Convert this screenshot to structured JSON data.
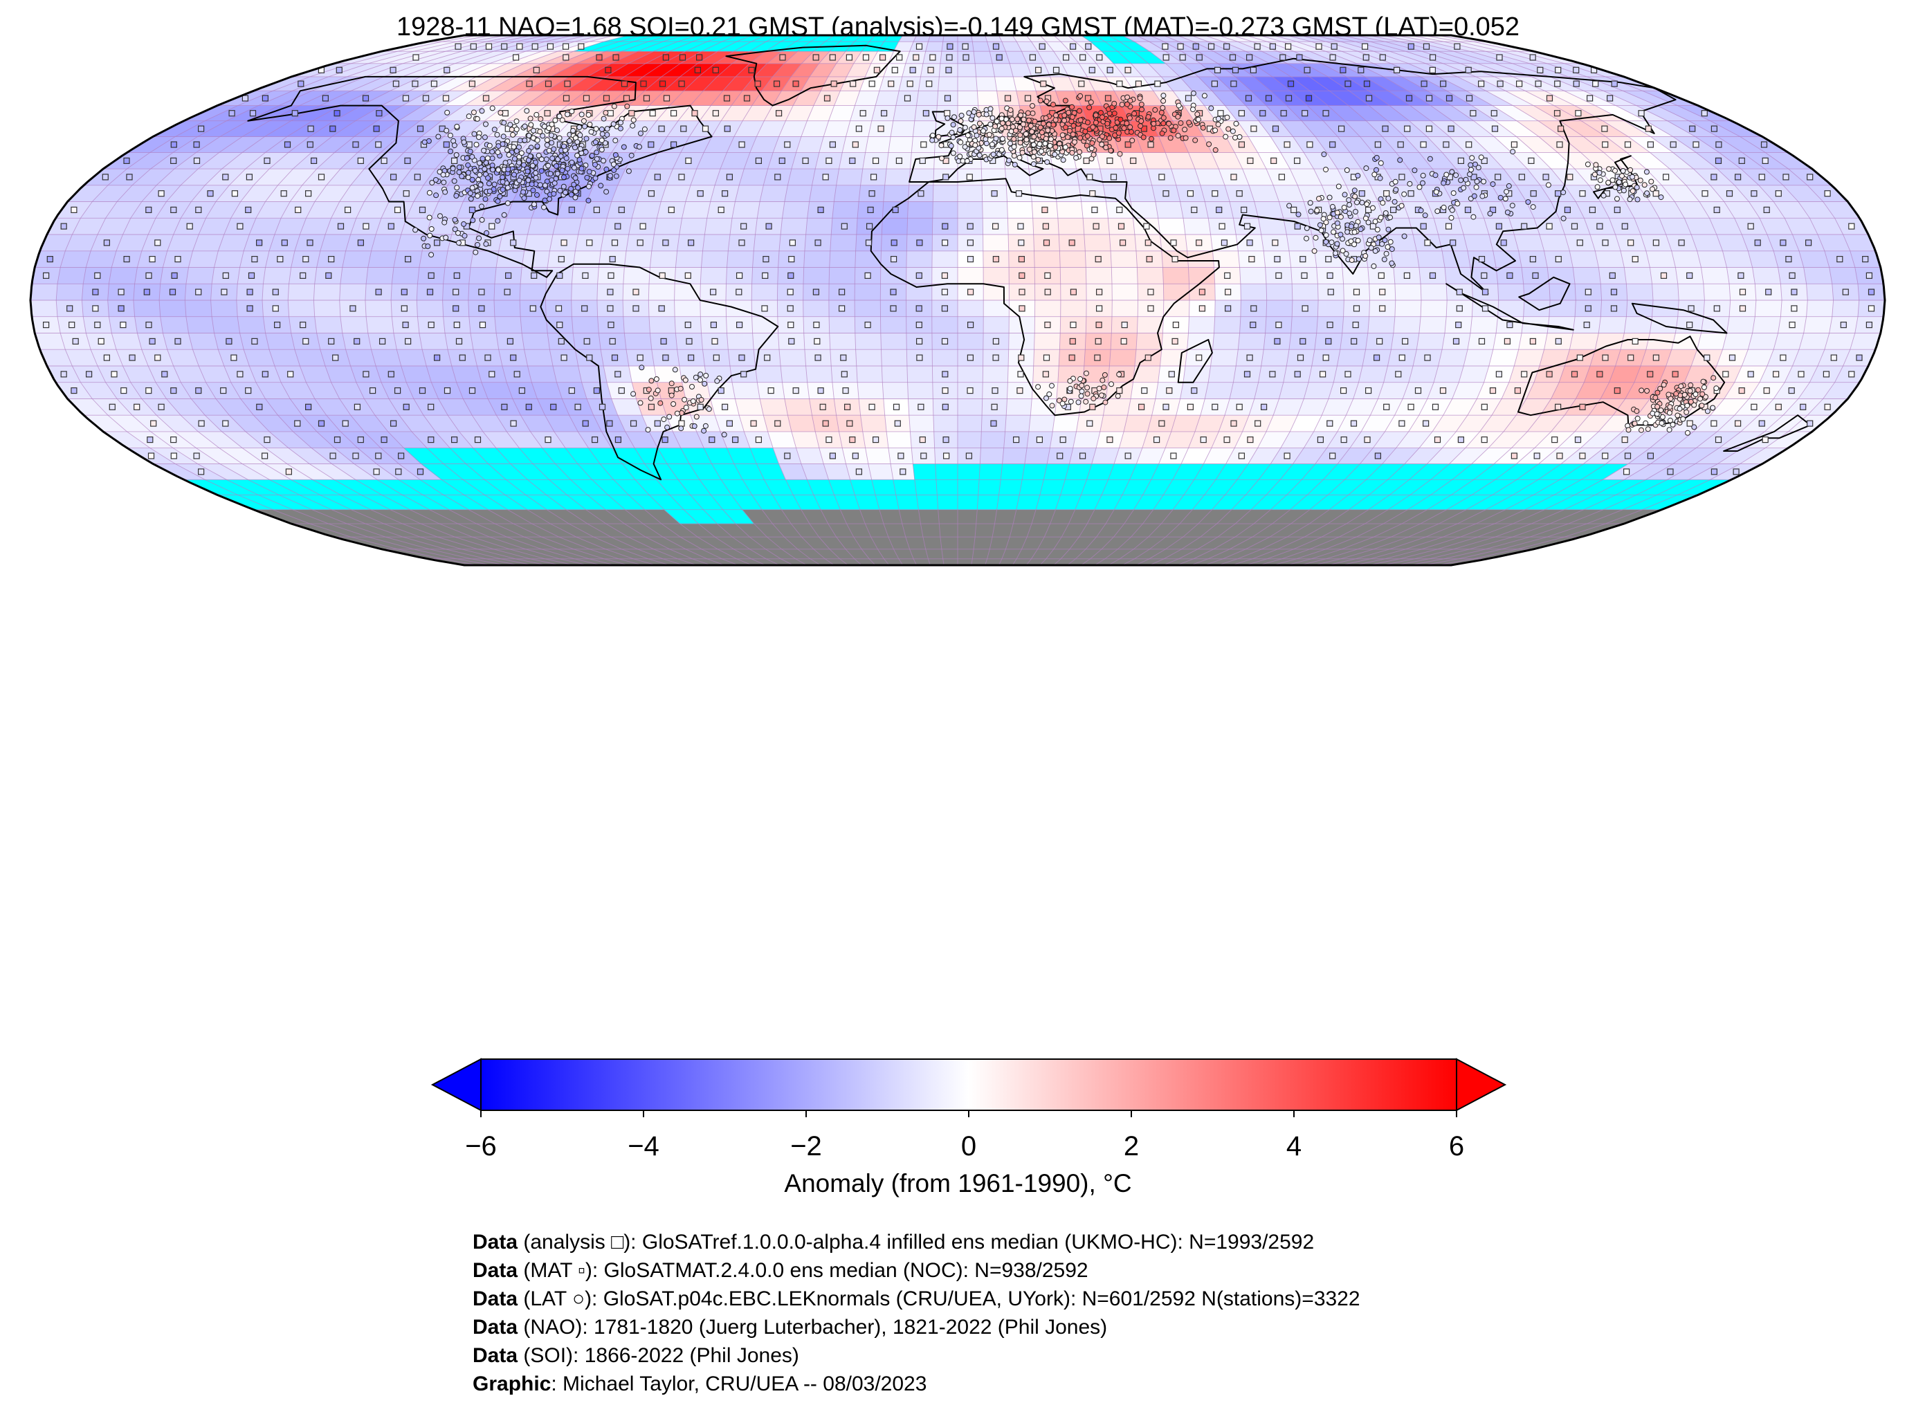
{
  "title": "1928-11 NAO=1.68 SOI=0.21 GMST (analysis)=-0.149 GMST (MAT)=-0.273 GMST (LAT)=0.052",
  "colorbar": {
    "label": "Anomaly (from 1961-1990), °C",
    "ticks": [
      "−6",
      "−4",
      "−2",
      "0",
      "2",
      "4",
      "6"
    ],
    "tick_values": [
      -6,
      -4,
      -2,
      0,
      2,
      4,
      6
    ],
    "min": -6,
    "max": 6,
    "colormap": "bwr",
    "extend": "both"
  },
  "map": {
    "projection": "Robinson",
    "grid": "5x5 degree",
    "land_outline_color": "#000000",
    "missing_color": "#00ffff",
    "antarctica_color": "#808080",
    "markers": {
      "analysis": "square",
      "mat": "small square",
      "lat": "circle"
    },
    "anomaly_regions": [
      {
        "region": "Arctic Canada / Greenland",
        "anomaly": 5.5
      },
      {
        "region": "Eastern Europe / Western Russia",
        "anomaly": 4.0
      },
      {
        "region": "Central Siberia",
        "anomaly": -3.0
      },
      {
        "region": "North Pacific",
        "anomaly": -2.5
      },
      {
        "region": "Eastern North America",
        "anomaly": -1.5
      },
      {
        "region": "Southern Africa",
        "anomaly": 2.5
      },
      {
        "region": "Australia",
        "anomaly": 2.5
      },
      {
        "region": "Southern Ocean",
        "anomaly": "missing"
      }
    ]
  },
  "credits": [
    {
      "key": "Data",
      "text": " (analysis □): GloSATref.1.0.0.0-alpha.4 infilled ens median (UKMO-HC): N=1993/2592"
    },
    {
      "key": "Data",
      "text": " (MAT ▫): GloSATMAT.2.4.0.0 ens median (NOC): N=938/2592"
    },
    {
      "key": "Data",
      "text": " (LAT ○): GloSAT.p04c.EBC.LEKnormals (CRU/UEA, UYork): N=601/2592 N(stations)=3322"
    },
    {
      "key": "Data",
      "text": " (NAO): 1781-1820 (Juerg Luterbacher), 1821-2022 (Phil Jones)"
    },
    {
      "key": "Data",
      "text": " (SOI): 1866-2022 (Phil Jones)"
    },
    {
      "key": "Graphic",
      "text": ": Michael Taylor, CRU/UEA -- 08/03/2023"
    }
  ]
}
